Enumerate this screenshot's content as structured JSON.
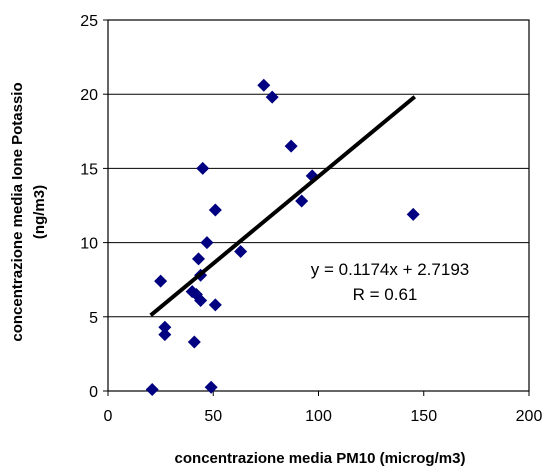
{
  "chart_data": {
    "type": "scatter",
    "title": "",
    "xlabel": "concentrazione media PM10 (microg/m3)",
    "ylabel_line1": "concentrazione media Ione Potassio",
    "ylabel_line2": "(ng/m3)",
    "xlim": [
      0,
      200
    ],
    "ylim": [
      0,
      25
    ],
    "x_ticks": [
      0,
      50,
      100,
      150,
      200
    ],
    "y_ticks": [
      0,
      5,
      10,
      15,
      20,
      25
    ],
    "grid": "horizontal",
    "legend": "none",
    "marker": "diamond",
    "marker_color": "#000080",
    "points": [
      {
        "x": 21,
        "y": 0.1
      },
      {
        "x": 25,
        "y": 7.4
      },
      {
        "x": 27,
        "y": 4.3
      },
      {
        "x": 27,
        "y": 3.8
      },
      {
        "x": 40,
        "y": 6.7
      },
      {
        "x": 41,
        "y": 3.3
      },
      {
        "x": 42,
        "y": 6.5
      },
      {
        "x": 43,
        "y": 8.9
      },
      {
        "x": 44,
        "y": 6.1
      },
      {
        "x": 44,
        "y": 7.8
      },
      {
        "x": 45,
        "y": 15.0
      },
      {
        "x": 47,
        "y": 10.0
      },
      {
        "x": 49,
        "y": 0.25
      },
      {
        "x": 51,
        "y": 12.2
      },
      {
        "x": 51,
        "y": 5.8
      },
      {
        "x": 63,
        "y": 9.4
      },
      {
        "x": 74,
        "y": 20.6
      },
      {
        "x": 78,
        "y": 19.8
      },
      {
        "x": 87,
        "y": 16.5
      },
      {
        "x": 92,
        "y": 12.8
      },
      {
        "x": 97,
        "y": 14.5
      },
      {
        "x": 145,
        "y": 11.9
      }
    ],
    "trendline": {
      "slope": 0.1174,
      "intercept": 2.7193,
      "x_start": 21,
      "x_end": 145
    },
    "annotations": [
      "y = 0.1174x + 2.7193",
      "R = 0.61"
    ]
  }
}
